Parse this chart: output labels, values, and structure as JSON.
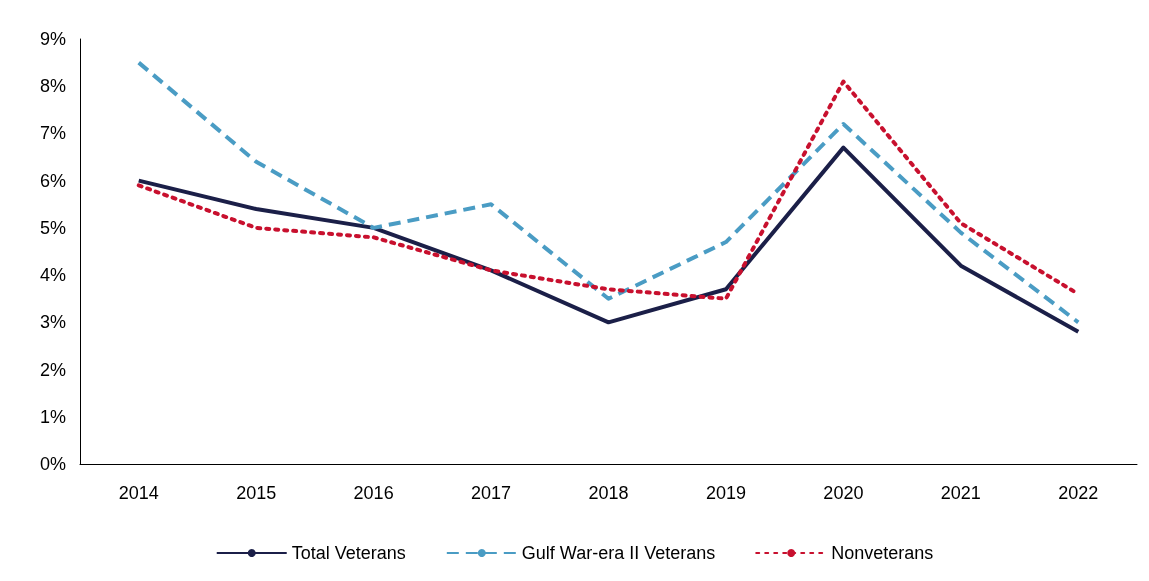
{
  "chart_data": {
    "type": "line",
    "categories": [
      "2014",
      "2015",
      "2016",
      "2017",
      "2018",
      "2019",
      "2020",
      "2021",
      "2022"
    ],
    "series": [
      {
        "name": "Total Veterans",
        "color": "#1b1f48",
        "line_style": "solid",
        "values": [
          6.0,
          5.4,
          5.0,
          4.1,
          3.0,
          3.7,
          6.7,
          4.2,
          2.8
        ]
      },
      {
        "name": "Gulf War-era II Veterans",
        "color": "#4a9cc4",
        "line_style": "dashed",
        "values": [
          8.5,
          6.4,
          5.0,
          5.5,
          3.5,
          4.7,
          7.2,
          4.9,
          3.0
        ]
      },
      {
        "name": "Nonveterans",
        "color": "#c8102e",
        "line_style": "dotted",
        "values": [
          5.9,
          5.0,
          4.8,
          4.1,
          3.7,
          3.5,
          8.1,
          5.1,
          3.6
        ]
      }
    ],
    "ylim": [
      0,
      9
    ],
    "yticks": [
      {
        "value": 0,
        "label": "0%"
      },
      {
        "value": 1,
        "label": "1%"
      },
      {
        "value": 2,
        "label": "2%"
      },
      {
        "value": 3,
        "label": "3%"
      },
      {
        "value": 4,
        "label": "4%"
      },
      {
        "value": 5,
        "label": "5%"
      },
      {
        "value": 6,
        "label": "6%"
      },
      {
        "value": 7,
        "label": "7%"
      },
      {
        "value": 8,
        "label": "8%"
      },
      {
        "value": 9,
        "label": "9%"
      }
    ],
    "grid": false,
    "legend": "bottom",
    "marker": "none"
  }
}
